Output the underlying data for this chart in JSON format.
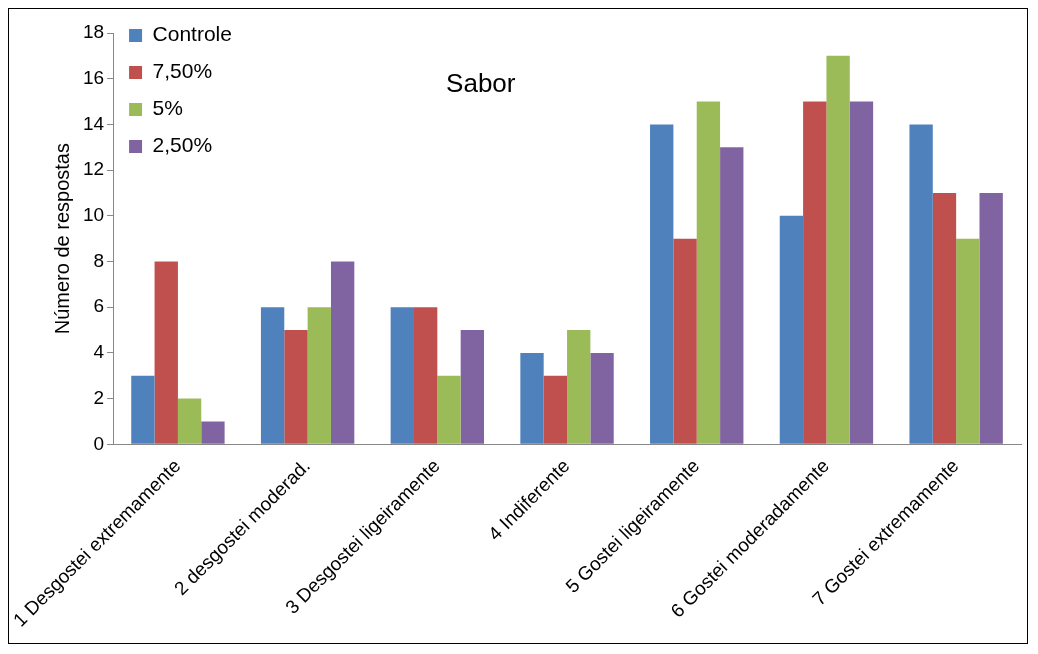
{
  "chart_data": {
    "type": "bar",
    "title": "Sabor",
    "ylabel": "Número de respostas",
    "categories": [
      "1 Desgostei extremamente",
      "2 desgostei moderad.",
      "3 Desgostei ligeiramente",
      "4 Indiferente",
      "5 Gostei ligeiramente",
      "6 Gostei moderadamente",
      "7 Gostei extremamente"
    ],
    "series": [
      {
        "name": "Controle",
        "color": "#4f81bd",
        "values": [
          3,
          6,
          6,
          4,
          14,
          10,
          14
        ]
      },
      {
        "name": "7,50%",
        "color": "#c0504d",
        "values": [
          8,
          5,
          6,
          3,
          9,
          15,
          11
        ]
      },
      {
        "name": "5%",
        "color": "#9bbb59",
        "values": [
          2,
          6,
          3,
          5,
          15,
          17,
          9
        ]
      },
      {
        "name": "2,50%",
        "color": "#8064a2",
        "values": [
          1,
          8,
          5,
          4,
          13,
          15,
          11
        ]
      }
    ],
    "ylim": [
      0,
      18
    ],
    "yticks": [
      0,
      2,
      4,
      6,
      8,
      10,
      12,
      14,
      16,
      18
    ],
    "grid": false,
    "legend": "top left"
  }
}
